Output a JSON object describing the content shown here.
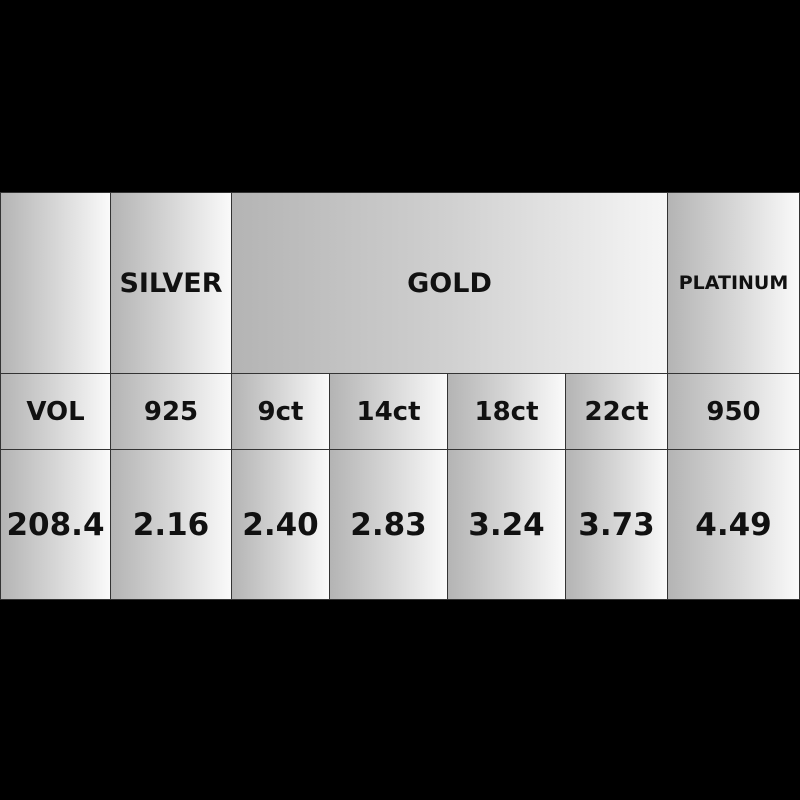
{
  "table": {
    "groups": [
      {
        "label": ""
      },
      {
        "label": "SILVER"
      },
      {
        "label": "GOLD"
      },
      {
        "label": "PLATINUM"
      }
    ],
    "columns": [
      "VOL",
      "925",
      "9ct",
      "14ct",
      "18ct",
      "22ct",
      "950"
    ],
    "values": [
      "208.4",
      "2.16",
      "2.40",
      "2.83",
      "3.24",
      "3.73",
      "4.49"
    ]
  }
}
